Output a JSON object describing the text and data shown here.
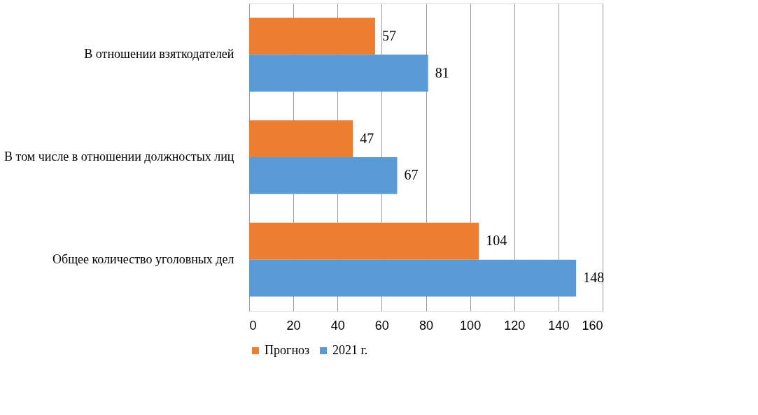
{
  "chart_data": {
    "type": "bar",
    "orientation": "horizontal",
    "categories": [
      "В отношении взяткодателей",
      "В том числе в отношении должностых лиц",
      "Общее количество уголовных дел"
    ],
    "series": [
      {
        "name": "Прогноз",
        "color": "#ed7d31",
        "values": [
          57,
          47,
          104
        ]
      },
      {
        "name": "2021 г.",
        "color": "#5b9bd5",
        "values": [
          81,
          67,
          148
        ]
      }
    ],
    "xlim": [
      0,
      160
    ],
    "xticks": [
      0,
      20,
      40,
      60,
      80,
      100,
      120,
      140,
      160
    ],
    "grid": "x",
    "legend": "bottom",
    "data_labels": true
  }
}
